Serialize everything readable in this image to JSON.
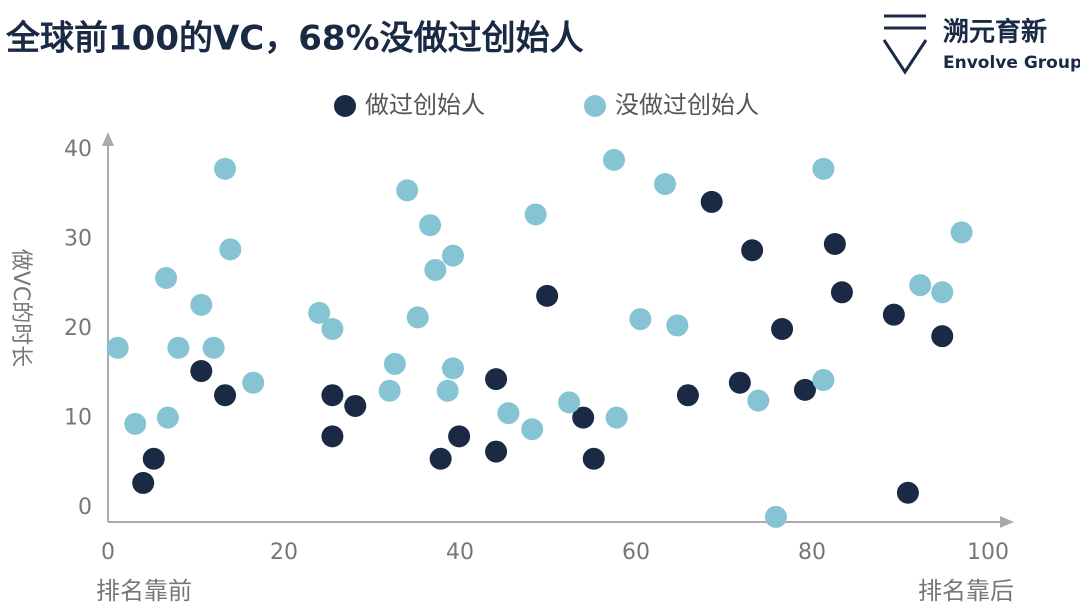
{
  "chart_data": {
    "type": "scatter",
    "title": "全球前100的VC，68%没做过创始人",
    "brand": {
      "name": "溯元育新",
      "subtitle": "Envolve Group"
    },
    "y_label": "做VC的时长",
    "x_label_left": "排名靠前",
    "x_label_right": "排名靠后",
    "xlim": [
      0,
      102
    ],
    "ylim": [
      -1.5,
      41.5
    ],
    "xticks": [
      0,
      20,
      40,
      60,
      80,
      100
    ],
    "yticks": [
      0,
      10,
      20,
      30,
      40
    ],
    "grid": false,
    "series": [
      {
        "name": "做过创始人",
        "color": "#1b2a44",
        "x": [
          4.0,
          5.2,
          10.6,
          13.3,
          25.5,
          25.5,
          28.1,
          37.8,
          39.9,
          44.1,
          44.1,
          49.9,
          54.0,
          55.2,
          65.9,
          68.6,
          71.8,
          73.2,
          76.6,
          79.2,
          82.6,
          83.4,
          89.3,
          90.9,
          94.8
        ],
        "values": [
          2.8,
          5.5,
          15.3,
          12.6,
          12.6,
          8.0,
          11.4,
          5.5,
          8.0,
          14.4,
          6.3,
          23.7,
          10.1,
          5.5,
          12.6,
          34.2,
          14.0,
          28.8,
          20.0,
          13.2,
          29.5,
          24.1,
          21.6,
          1.7,
          19.2
        ]
      },
      {
        "name": "没做过创始人",
        "color": "#86c4d4",
        "x": [
          1.1,
          3.1,
          6.6,
          6.8,
          8.0,
          10.6,
          12.0,
          13.3,
          13.9,
          16.5,
          24.0,
          25.5,
          32.0,
          32.6,
          34.0,
          35.2,
          36.6,
          37.2,
          38.6,
          39.2,
          39.2,
          45.5,
          48.2,
          48.6,
          52.4,
          57.5,
          57.8,
          60.5,
          63.3,
          64.7,
          73.9,
          75.9,
          81.3,
          81.3,
          92.3,
          94.8,
          97.0
        ],
        "values": [
          17.9,
          9.4,
          25.7,
          10.1,
          17.9,
          22.7,
          17.9,
          37.9,
          28.9,
          14.0,
          21.8,
          20.0,
          13.1,
          16.1,
          35.5,
          21.3,
          31.6,
          26.6,
          13.1,
          28.2,
          15.6,
          10.6,
          8.8,
          32.8,
          11.8,
          38.9,
          10.1,
          21.1,
          36.2,
          20.4,
          12.0,
          -1.0,
          37.9,
          14.3,
          24.9,
          24.1,
          30.8
        ]
      }
    ]
  }
}
